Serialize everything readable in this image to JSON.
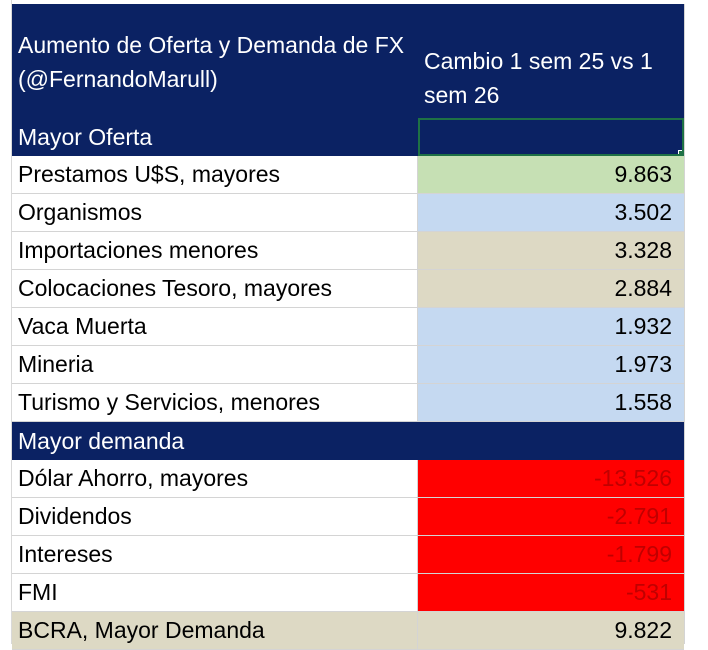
{
  "header": {
    "col1": "Aumento de Oferta y Demanda de FX (@FernandoMarull)",
    "col2": "Cambio 1 sem 25 vs 1 sem 26"
  },
  "sections": [
    {
      "label": "Mayor Oferta",
      "rows": [
        {
          "label": "Prestamos U$S, mayores",
          "value": "9.863",
          "bg": "#c6e0b4"
        },
        {
          "label": "Organismos",
          "value": "3.502",
          "bg": "#c5d9f1"
        },
        {
          "label": "Importaciones menores",
          "value": "3.328",
          "bg": "#ddd9c4"
        },
        {
          "label": "Colocaciones Tesoro, mayores",
          "value": "2.884",
          "bg": "#ddd9c4"
        },
        {
          "label": "Vaca Muerta",
          "value": "1.932",
          "bg": "#c5d9f1"
        },
        {
          "label": "Mineria",
          "value": "1.973",
          "bg": "#c5d9f1"
        },
        {
          "label": "Turismo y Servicios, menores",
          "value": "1.558",
          "bg": "#c5d9f1"
        }
      ]
    },
    {
      "label": "Mayor demanda",
      "rows": [
        {
          "label": "Dólar Ahorro, mayores",
          "value": "-13.526",
          "bg": "#ff0000"
        },
        {
          "label": "Dividendos",
          "value": "-2.791",
          "bg": "#ff0000"
        },
        {
          "label": "Intereses",
          "value": "-1.799",
          "bg": "#ff0000"
        },
        {
          "label": "FMI",
          "value": "-531",
          "bg": "#ff0000"
        }
      ]
    }
  ],
  "footer": {
    "label": "BCRA, Mayor Demanda",
    "value": "9.822",
    "bg": "#ddd9c4"
  },
  "colors": {
    "header_bg": "#0b2263",
    "negative_text": "#c00000",
    "selection": "#1e7145"
  }
}
